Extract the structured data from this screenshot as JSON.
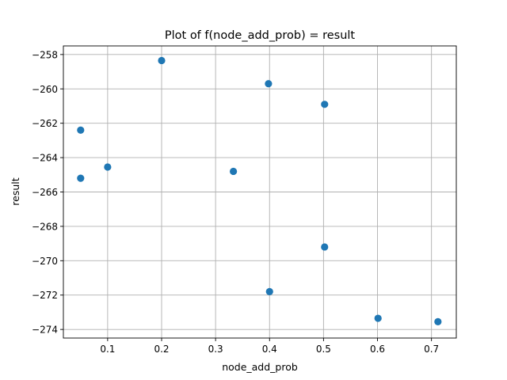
{
  "chart_data": {
    "type": "scatter",
    "title": "Plot of f(node_add_prob) = result",
    "xlabel": "node_add_prob",
    "ylabel": "result",
    "xlim": [
      0.018,
      0.746
    ],
    "ylim": [
      -274.5,
      -257.5
    ],
    "xticks": [
      0.1,
      0.2,
      0.3,
      0.4,
      0.5,
      0.6,
      0.7
    ],
    "xtick_labels": [
      "0.1",
      "0.2",
      "0.3",
      "0.4",
      "0.5",
      "0.6",
      "0.7"
    ],
    "yticks": [
      -274,
      -272,
      -270,
      -268,
      -266,
      -264,
      -262,
      -260,
      -258
    ],
    "ytick_labels": [
      "−274",
      "−272",
      "−270",
      "−268",
      "−266",
      "−264",
      "−262",
      "−260",
      "−258"
    ],
    "grid": true,
    "marker_color": "#1f77b4",
    "points": [
      {
        "x": 0.05,
        "y": -262.4
      },
      {
        "x": 0.05,
        "y": -265.2
      },
      {
        "x": 0.1,
        "y": -264.55
      },
      {
        "x": 0.2,
        "y": -258.35
      },
      {
        "x": 0.333,
        "y": -264.8
      },
      {
        "x": 0.398,
        "y": -259.7
      },
      {
        "x": 0.4,
        "y": -271.8
      },
      {
        "x": 0.502,
        "y": -260.9
      },
      {
        "x": 0.502,
        "y": -269.2
      },
      {
        "x": 0.601,
        "y": -273.35
      },
      {
        "x": 0.712,
        "y": -273.55
      }
    ]
  }
}
